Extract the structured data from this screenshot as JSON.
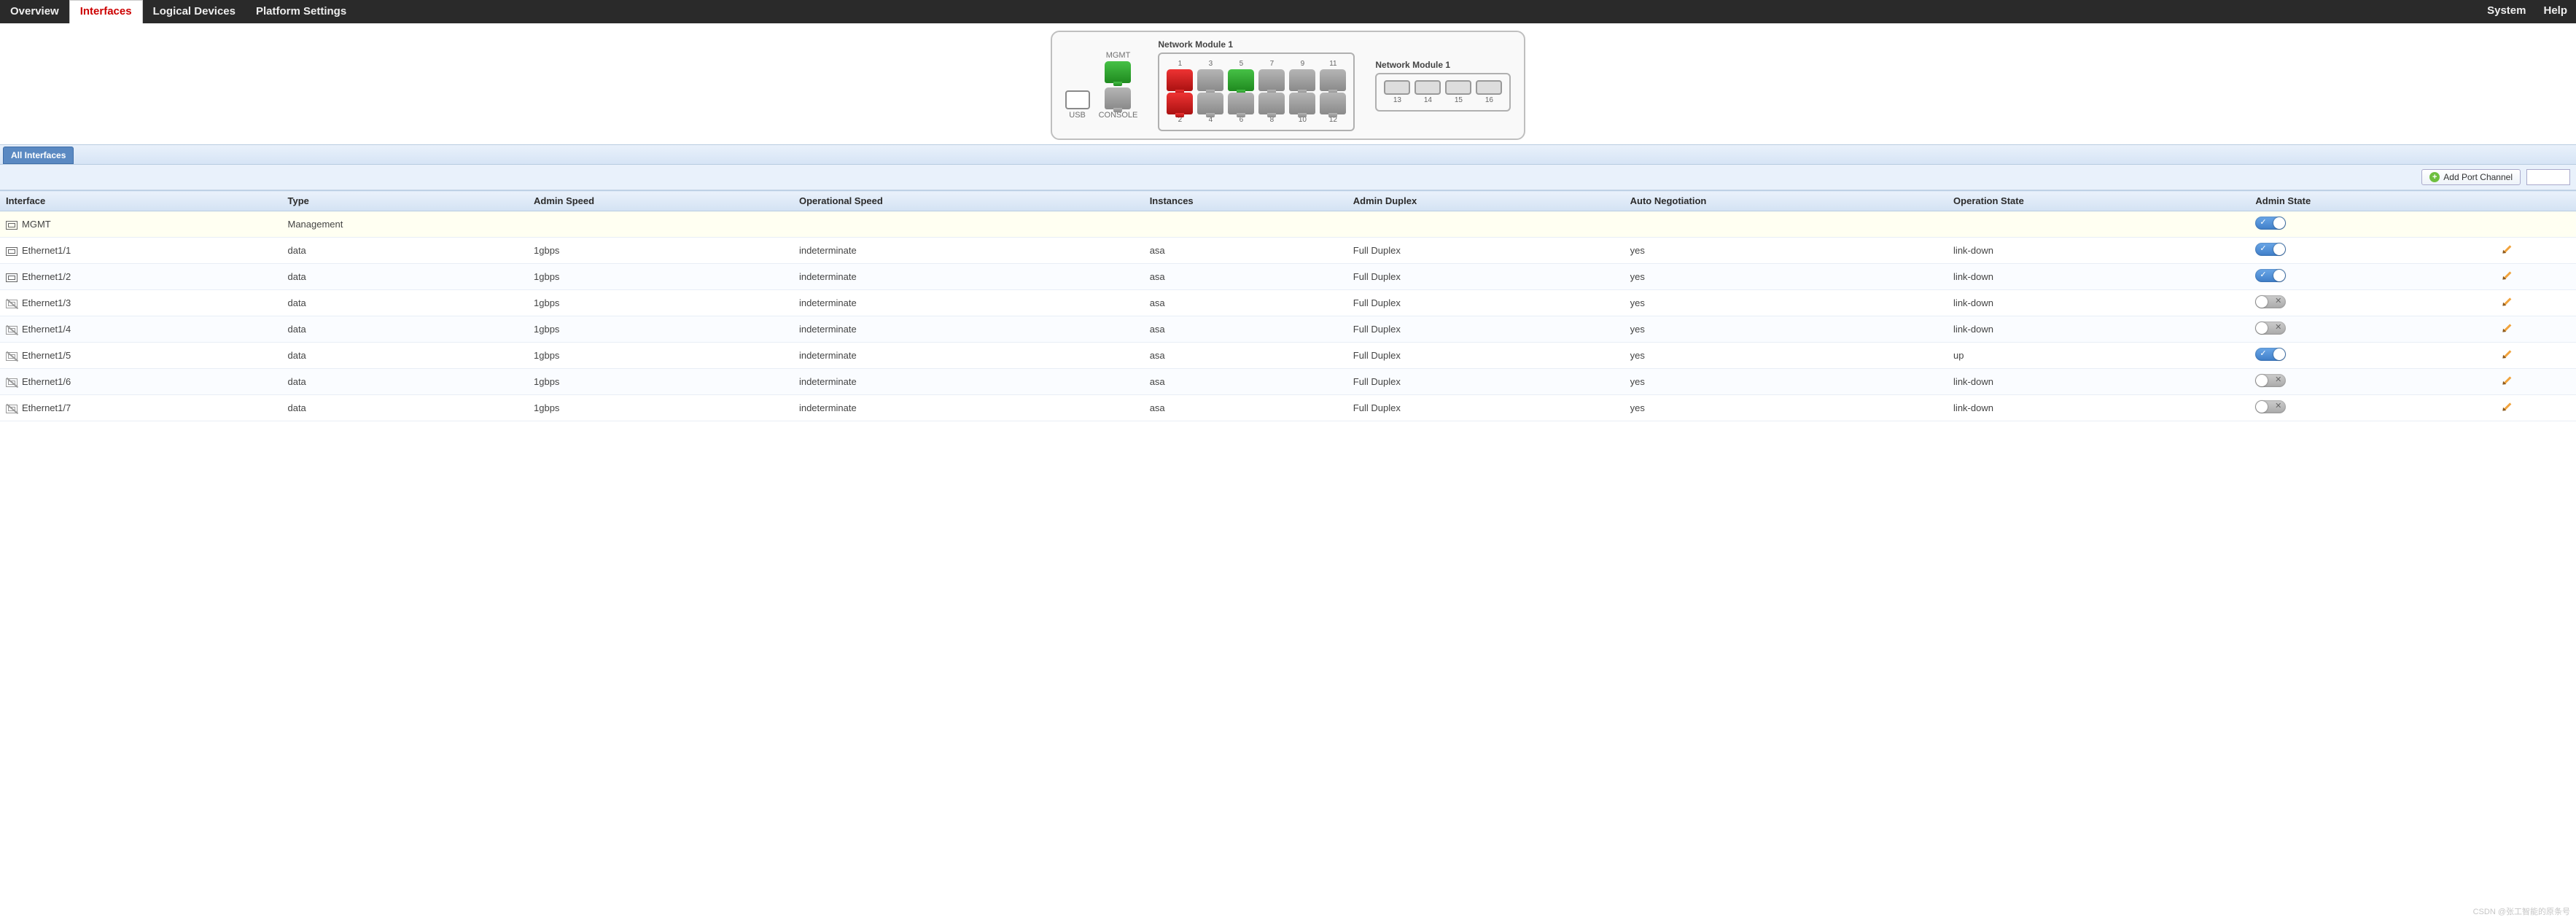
{
  "nav": {
    "tabs": [
      "Overview",
      "Interfaces",
      "Logical Devices",
      "Platform Settings"
    ],
    "active": "Interfaces",
    "right": [
      "System",
      "Help"
    ]
  },
  "chassis": {
    "usb_label": "USB",
    "mgmt_label_top": "MGMT",
    "console_label": "CONSOLE",
    "mgmt_port_color": "rj-green",
    "console_port_color": "rj-gray",
    "module1": {
      "title": "Network Module 1",
      "top_ports": [
        {
          "num": "1",
          "color": "rj-red"
        },
        {
          "num": "3",
          "color": "rj-gray"
        },
        {
          "num": "5",
          "color": "rj-green"
        },
        {
          "num": "7",
          "color": "rj-gray"
        },
        {
          "num": "9",
          "color": "rj-gray"
        },
        {
          "num": "11",
          "color": "rj-gray"
        }
      ],
      "bottom_ports": [
        {
          "num": "2",
          "color": "rj-red"
        },
        {
          "num": "4",
          "color": "rj-gray"
        },
        {
          "num": "6",
          "color": "rj-gray"
        },
        {
          "num": "8",
          "color": "rj-gray"
        },
        {
          "num": "10",
          "color": "rj-gray"
        },
        {
          "num": "12",
          "color": "rj-gray"
        }
      ]
    },
    "module2": {
      "title": "Network Module 1",
      "slots": [
        "13",
        "14",
        "15",
        "16"
      ]
    }
  },
  "subtab": {
    "label": "All Interfaces"
  },
  "toolbar": {
    "add_port_channel": "Add Port Channel",
    "search_placeholder": ""
  },
  "table": {
    "columns": [
      "Interface",
      "Type",
      "Admin Speed",
      "Operational Speed",
      "Instances",
      "Admin Duplex",
      "Auto Negotiation",
      "Operation State",
      "Admin State",
      ""
    ],
    "rows": [
      {
        "iface": "MGMT",
        "type": "Management",
        "aspeed": "",
        "ospeed": "",
        "inst": "",
        "duplex": "",
        "auto": "",
        "opstate": "",
        "admin": "on",
        "edit": false,
        "icon": "en",
        "mgmt": true
      },
      {
        "iface": "Ethernet1/1",
        "type": "data",
        "aspeed": "1gbps",
        "ospeed": "indeterminate",
        "inst": "asa",
        "duplex": "Full Duplex",
        "auto": "yes",
        "opstate": "link-down",
        "admin": "on",
        "edit": true,
        "icon": "en"
      },
      {
        "iface": "Ethernet1/2",
        "type": "data",
        "aspeed": "1gbps",
        "ospeed": "indeterminate",
        "inst": "asa",
        "duplex": "Full Duplex",
        "auto": "yes",
        "opstate": "link-down",
        "admin": "on",
        "edit": true,
        "icon": "en"
      },
      {
        "iface": "Ethernet1/3",
        "type": "data",
        "aspeed": "1gbps",
        "ospeed": "indeterminate",
        "inst": "asa",
        "duplex": "Full Duplex",
        "auto": "yes",
        "opstate": "link-down",
        "admin": "off",
        "edit": true,
        "icon": "dis"
      },
      {
        "iface": "Ethernet1/4",
        "type": "data",
        "aspeed": "1gbps",
        "ospeed": "indeterminate",
        "inst": "asa",
        "duplex": "Full Duplex",
        "auto": "yes",
        "opstate": "link-down",
        "admin": "off",
        "edit": true,
        "icon": "dis"
      },
      {
        "iface": "Ethernet1/5",
        "type": "data",
        "aspeed": "1gbps",
        "ospeed": "indeterminate",
        "inst": "asa",
        "duplex": "Full Duplex",
        "auto": "yes",
        "opstate": "up",
        "admin": "on",
        "edit": true,
        "icon": "dis"
      },
      {
        "iface": "Ethernet1/6",
        "type": "data",
        "aspeed": "1gbps",
        "ospeed": "indeterminate",
        "inst": "asa",
        "duplex": "Full Duplex",
        "auto": "yes",
        "opstate": "link-down",
        "admin": "off",
        "edit": true,
        "icon": "dis"
      },
      {
        "iface": "Ethernet1/7",
        "type": "data",
        "aspeed": "1gbps",
        "ospeed": "indeterminate",
        "inst": "asa",
        "duplex": "Full Duplex",
        "auto": "yes",
        "opstate": "link-down",
        "admin": "off",
        "edit": true,
        "icon": "dis"
      }
    ]
  },
  "watermark": "CSDN @张工智能的原条号",
  "colors": {
    "nav_bg": "#2a2a2a",
    "active_tab_text": "#c00",
    "header_grad_top": "#eaf1fb",
    "header_grad_bot": "#d3e2f3",
    "toggle_on": "#3f7ec8",
    "toggle_off": "#aaaaaa",
    "port_green": "#2fa32f",
    "port_red": "#cc1f1f",
    "port_gray": "#9a9a9a"
  }
}
